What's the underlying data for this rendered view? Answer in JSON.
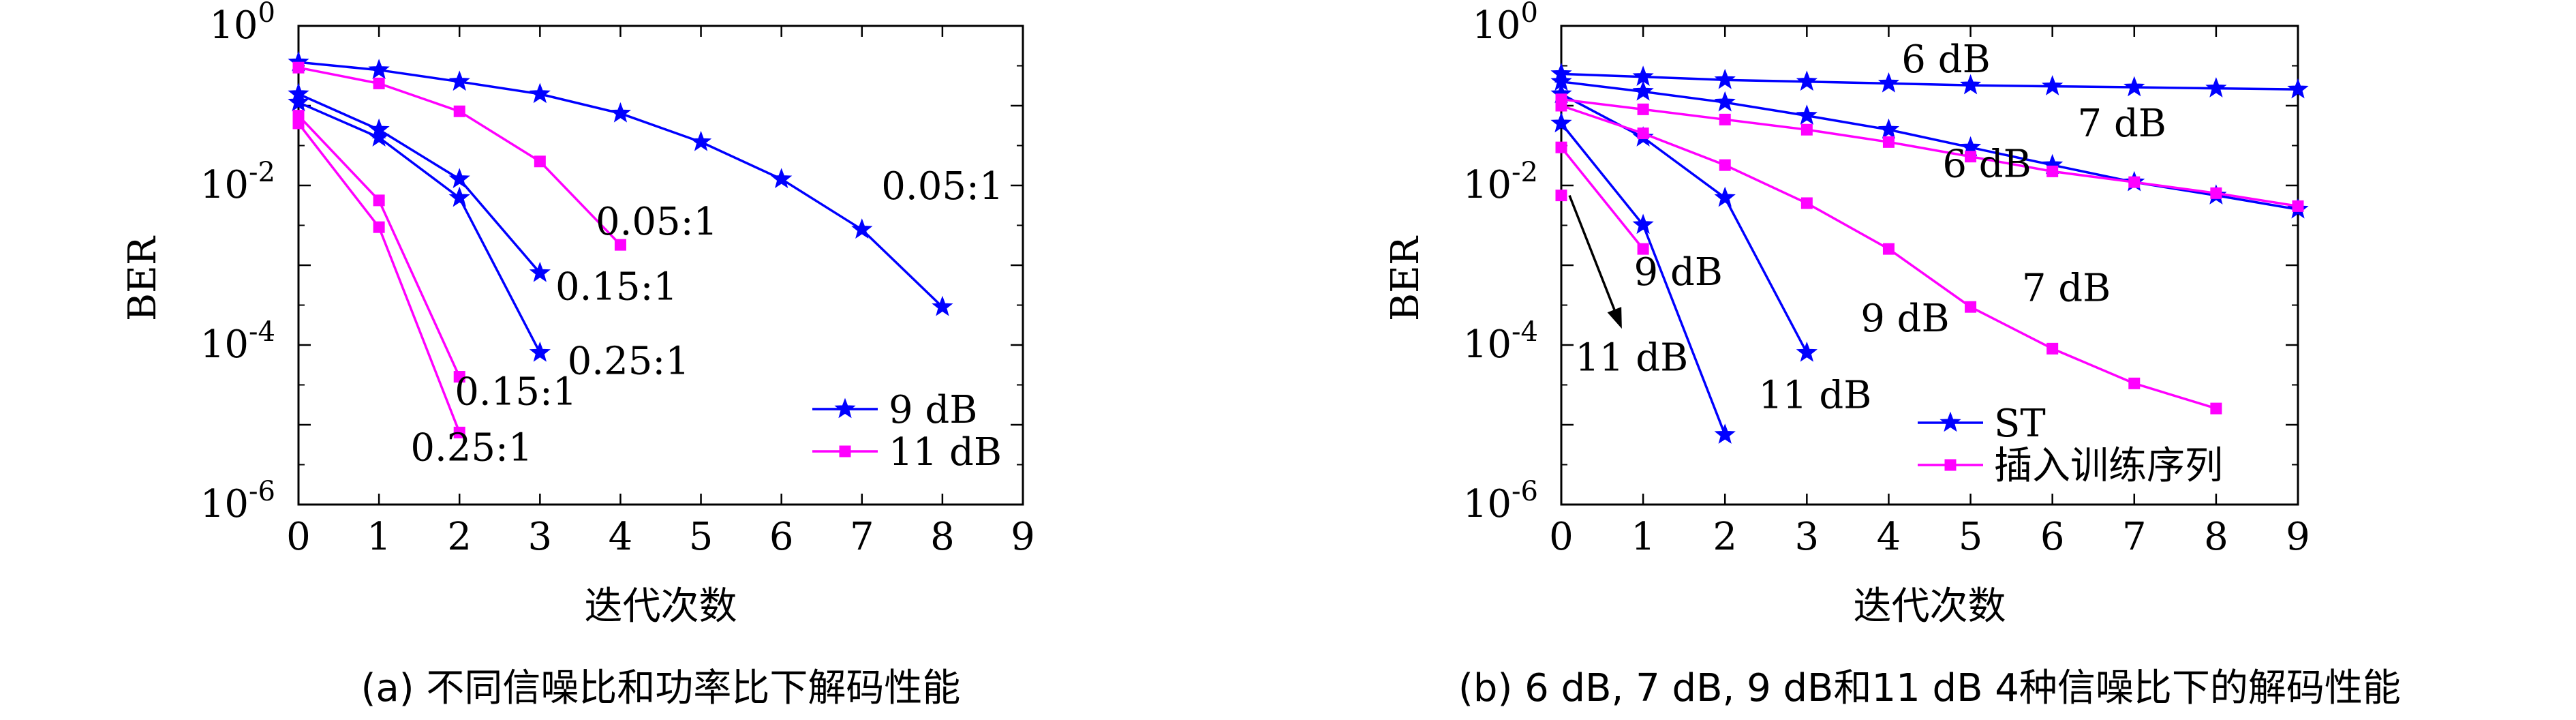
{
  "chart_data": [
    {
      "type": "line",
      "caption": "(a) 不同信噪比和功率比下解码性能",
      "xlabel": "迭代次数",
      "ylabel": "BER",
      "xlim": [
        0,
        9
      ],
      "ylim": [
        1e-06,
        1
      ],
      "yscale": "log",
      "xticks": [
        "0",
        "1",
        "2",
        "3",
        "4",
        "5",
        "6",
        "7",
        "8",
        "9"
      ],
      "yticks": [
        {
          "base": "10",
          "exp": "0",
          "value": 1
        },
        {
          "base": "10",
          "exp": "-2",
          "value": 0.01
        },
        {
          "base": "10",
          "exp": "-4",
          "value": 0.0001
        },
        {
          "base": "10",
          "exp": "-6",
          "value": 1e-06
        }
      ],
      "grid": false,
      "legend": {
        "placement": "bottom-right",
        "entries": [
          "9 dB",
          "11 dB"
        ]
      },
      "series": [
        {
          "name": "9 dB",
          "color": "#0000ff",
          "marker": "star",
          "x": [
            0,
            1,
            2,
            3,
            4,
            5,
            6,
            7,
            8
          ],
          "y": [
            0.35,
            0.28,
            0.2,
            0.14,
            0.08,
            0.035,
            0.012,
            0.0028,
            0.0003
          ]
        },
        {
          "name": "9 dB",
          "color": "#0000ff",
          "marker": "star",
          "x": [
            0,
            1,
            2,
            3
          ],
          "y": [
            0.14,
            0.05,
            0.012,
            0.0008
          ]
        },
        {
          "name": "9 dB",
          "color": "#0000ff",
          "marker": "star",
          "x": [
            0,
            1,
            2,
            3
          ],
          "y": [
            0.11,
            0.04,
            0.007,
            8e-05
          ]
        },
        {
          "name": "11 dB",
          "color": "#ff00ff",
          "marker": "square",
          "x": [
            0,
            1,
            2,
            3,
            4
          ],
          "y": [
            0.3,
            0.19,
            0.085,
            0.02,
            0.0018
          ]
        },
        {
          "name": "11 dB",
          "color": "#ff00ff",
          "marker": "square",
          "x": [
            0,
            1,
            2
          ],
          "y": [
            0.075,
            0.0065,
            4e-05
          ]
        },
        {
          "name": "11 dB",
          "color": "#ff00ff",
          "marker": "square",
          "x": [
            0,
            1,
            2
          ],
          "y": [
            0.06,
            0.003,
            8e-06
          ]
        }
      ],
      "annotations": [
        {
          "text": "0.05:1",
          "x": 8,
          "y": 0.01
        },
        {
          "text": "0.05:1",
          "x": 4.45,
          "y": 0.0036
        },
        {
          "text": "0.15:1",
          "x": 3.95,
          "y": 0.00055
        },
        {
          "text": "0.25:1",
          "x": 4.1,
          "y": 6.4e-05
        },
        {
          "text": "0.15:1",
          "x": 2.7,
          "y": 2.65e-05
        },
        {
          "text": "0.25:1",
          "x": 2.15,
          "y": 5.3e-06
        }
      ]
    },
    {
      "type": "line",
      "caption": "(b) 6 dB, 7 dB, 9 dB和11 dB 4种信噪比下的解码性能",
      "xlabel": "迭代次数",
      "ylabel": "BER",
      "xlim": [
        0,
        9
      ],
      "ylim": [
        1e-06,
        1
      ],
      "yscale": "log",
      "xticks": [
        "0",
        "1",
        "2",
        "3",
        "4",
        "5",
        "6",
        "7",
        "8",
        "9"
      ],
      "yticks": [
        {
          "base": "10",
          "exp": "0",
          "value": 1
        },
        {
          "base": "10",
          "exp": "-2",
          "value": 0.01
        },
        {
          "base": "10",
          "exp": "-4",
          "value": 0.0001
        },
        {
          "base": "10",
          "exp": "-6",
          "value": 1e-06
        }
      ],
      "grid": false,
      "legend": {
        "placement": "bottom-right",
        "entries": [
          "ST",
          "插入训练序列"
        ]
      },
      "series": [
        {
          "name": "ST",
          "color": "#0000ff",
          "marker": "star",
          "x": [
            0,
            1,
            2,
            3,
            4,
            5,
            6,
            7,
            8,
            9
          ],
          "y": [
            0.25,
            0.23,
            0.21,
            0.2,
            0.19,
            0.18,
            0.175,
            0.17,
            0.165,
            0.16
          ]
        },
        {
          "name": "ST",
          "color": "#0000ff",
          "marker": "star",
          "x": [
            0,
            1,
            2,
            3,
            4,
            5,
            6,
            7,
            8,
            9
          ],
          "y": [
            0.2,
            0.15,
            0.11,
            0.075,
            0.05,
            0.03,
            0.018,
            0.011,
            0.0075,
            0.005
          ]
        },
        {
          "name": "ST",
          "color": "#0000ff",
          "marker": "star",
          "x": [
            0,
            1,
            2,
            3
          ],
          "y": [
            0.14,
            0.04,
            0.007,
            8e-05
          ]
        },
        {
          "name": "ST",
          "color": "#0000ff",
          "marker": "star",
          "x": [
            0,
            1,
            2
          ],
          "y": [
            0.06,
            0.0032,
            7.5e-06
          ]
        },
        {
          "name": "插入训练序列",
          "color": "#ff00ff",
          "marker": "square",
          "x": [
            0,
            1,
            2,
            3,
            4,
            5,
            6,
            7,
            8,
            9
          ],
          "y": [
            0.12,
            0.09,
            0.067,
            0.05,
            0.035,
            0.023,
            0.015,
            0.011,
            0.008,
            0.0055
          ]
        },
        {
          "name": "插入训练序列",
          "color": "#ff00ff",
          "marker": "square",
          "x": [
            0,
            1,
            2,
            3,
            4,
            5,
            6,
            7,
            8
          ],
          "y": [
            0.1,
            0.045,
            0.018,
            0.006,
            0.0016,
            0.0003,
            9e-05,
            3.3e-05,
            1.6e-05
          ]
        },
        {
          "name": "插入训练序列",
          "color": "#ff00ff",
          "marker": "square",
          "x": [
            0,
            1
          ],
          "y": [
            0.03,
            0.0016
          ]
        },
        {
          "name": "插入训练序列",
          "color": "#ff00ff",
          "marker": "square",
          "x": [
            0
          ],
          "y": [
            0.0075
          ]
        }
      ],
      "annotations": [
        {
          "text": "6 dB",
          "x": 4.7,
          "y": 0.39
        },
        {
          "text": "7 dB",
          "x": 6.85,
          "y": 0.061
        },
        {
          "text": "6 dB",
          "x": 5.2,
          "y": 0.019
        },
        {
          "text": "9 dB",
          "x": 1.43,
          "y": 0.00084
        },
        {
          "text": "9 dB",
          "x": 4.2,
          "y": 0.00022
        },
        {
          "text": "7 dB",
          "x": 6.17,
          "y": 0.00053
        },
        {
          "text": "11 dB",
          "x": 0.86,
          "y": 7.1e-05
        },
        {
          "text": "11 dB",
          "x": 3.1,
          "y": 2.4e-05
        }
      ],
      "arrow": {
        "from": [
          0.1,
          0.0075
        ],
        "to": [
          0.74,
          0.00016
        ],
        "color": "#000000"
      }
    }
  ]
}
